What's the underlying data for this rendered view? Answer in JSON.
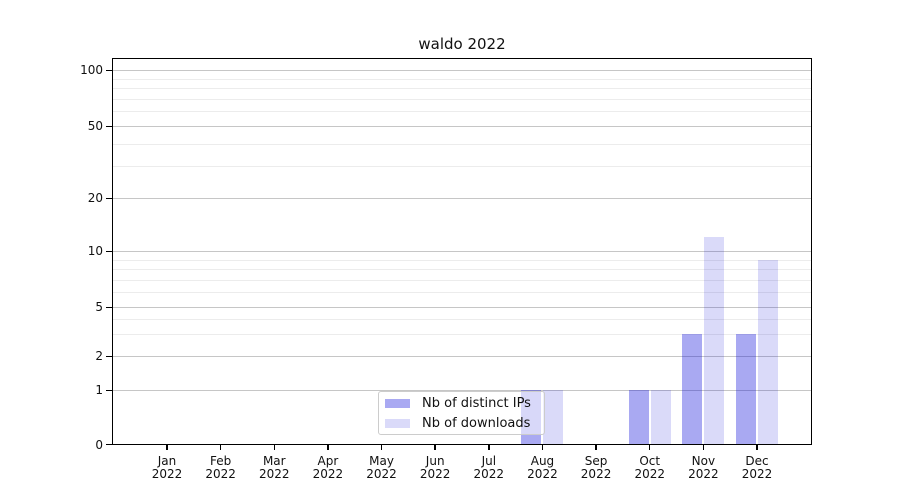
{
  "figure": {
    "background_color": "#ffffff",
    "text_color": "#111111"
  },
  "chart_data": {
    "type": "bar",
    "title": "waldo 2022",
    "x_tick_labels": [
      {
        "month": "Jan",
        "year": "2022"
      },
      {
        "month": "Feb",
        "year": "2022"
      },
      {
        "month": "Mar",
        "year": "2022"
      },
      {
        "month": "Apr",
        "year": "2022"
      },
      {
        "month": "May",
        "year": "2022"
      },
      {
        "month": "Jun",
        "year": "2022"
      },
      {
        "month": "Jul",
        "year": "2022"
      },
      {
        "month": "Aug",
        "year": "2022"
      },
      {
        "month": "Sep",
        "year": "2022"
      },
      {
        "month": "Oct",
        "year": "2022"
      },
      {
        "month": "Nov",
        "year": "2022"
      },
      {
        "month": "Dec",
        "year": "2022"
      }
    ],
    "series": [
      {
        "name": "Nb of distinct IPs",
        "color_hex": "#0808da",
        "alpha": 0.35,
        "color_on_white": "#a8a8f2",
        "values": [
          0,
          0,
          0,
          0,
          0,
          0,
          0,
          1,
          0,
          1,
          3,
          3
        ]
      },
      {
        "name": "Nb of downloads",
        "color_hex": "#0808da",
        "alpha": 0.15,
        "color_on_white": "#dadaf9",
        "values": [
          0,
          0,
          0,
          0,
          0,
          0,
          0,
          1,
          0,
          1,
          12,
          9
        ]
      }
    ],
    "y_axis": {
      "tick_values": [
        0,
        1,
        2,
        5,
        10,
        20,
        50,
        100
      ],
      "minor_gridline_values": [
        3,
        4,
        6,
        7,
        8,
        9,
        30,
        40,
        60,
        70,
        80,
        90
      ],
      "scale": "log above 1, linear 0 to 1",
      "range": [
        0,
        117
      ]
    },
    "grid": {
      "horizontal": true,
      "major_color": "#c6c6c6",
      "minor_color": "#ececec"
    },
    "legend": {
      "position": "inside-bottom-center",
      "entries": [
        "Nb of distinct IPs",
        "Nb of downloads"
      ]
    }
  }
}
